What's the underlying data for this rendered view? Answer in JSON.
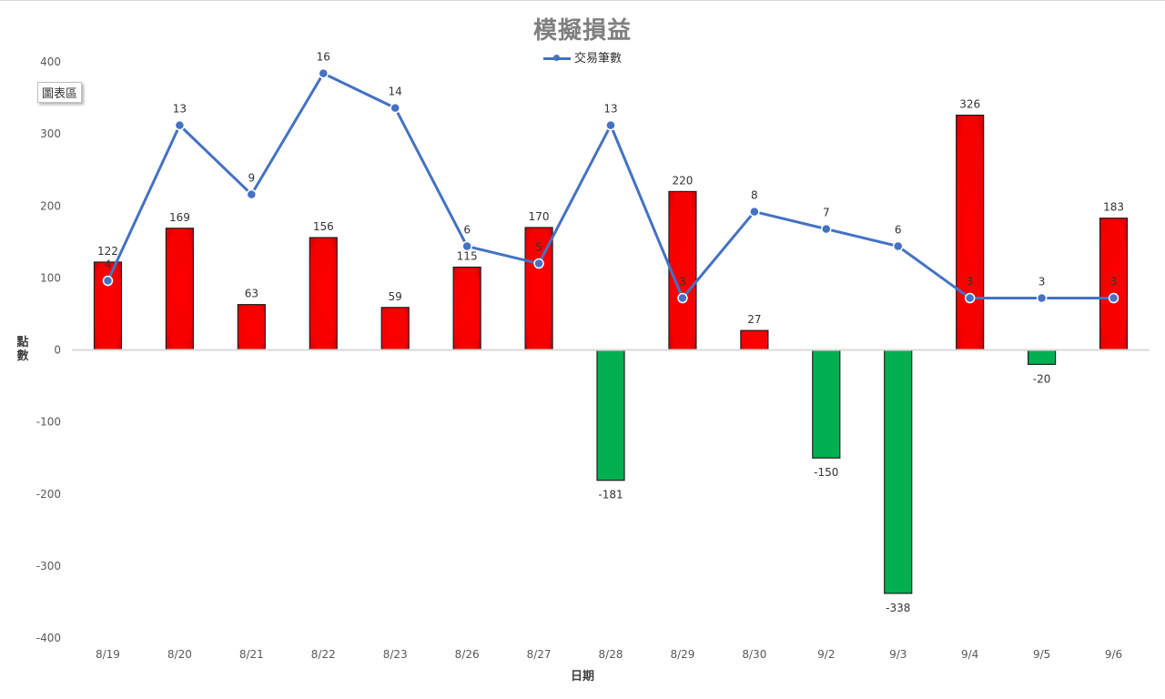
{
  "chart_data": {
    "type": "bar",
    "title": "模擬損益",
    "xlabel": "日期",
    "ylabel": "點數",
    "ylim": [
      -400,
      400
    ],
    "yticks": [
      400,
      300,
      200,
      100,
      0,
      -100,
      -200,
      -300,
      -400
    ],
    "categories": [
      "8/19",
      "8/20",
      "8/21",
      "8/22",
      "8/23",
      "8/26",
      "8/27",
      "8/28",
      "8/29",
      "8/30",
      "9/2",
      "9/3",
      "9/4",
      "9/5",
      "9/6"
    ],
    "bar_values": [
      122,
      169,
      63,
      156,
      59,
      115,
      170,
      -181,
      220,
      27,
      -150,
      -338,
      326,
      -20,
      183
    ],
    "line_series": {
      "name": "交易筆數",
      "values": [
        4,
        13,
        9,
        16,
        14,
        6,
        5,
        13,
        3,
        8,
        7,
        6,
        3,
        3,
        3
      ]
    },
    "legend_position": "top-center",
    "grid": false,
    "colors": {
      "positive": "#ff0000",
      "negative": "#00b050",
      "line": "#4472c4",
      "bar_border": "#1f1f1f"
    }
  },
  "chart_area_label": "圖表區"
}
